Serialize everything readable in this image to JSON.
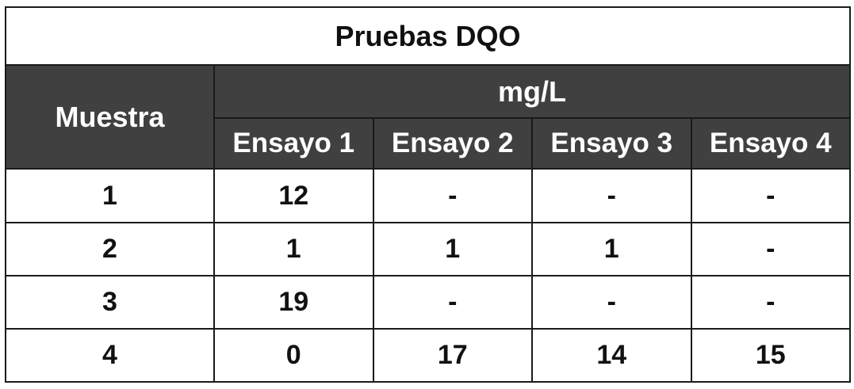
{
  "table": {
    "title": "Pruebas DQO",
    "header": {
      "muestra": "Muestra",
      "units": "mg/L",
      "ensayos": [
        "Ensayo 1",
        "Ensayo 2",
        "Ensayo 3",
        "Ensayo 4"
      ]
    },
    "rows": [
      {
        "muestra": "1",
        "values": [
          "12",
          "-",
          "-",
          "-"
        ]
      },
      {
        "muestra": "2",
        "values": [
          "1",
          "1",
          "1",
          "-"
        ]
      },
      {
        "muestra": "3",
        "values": [
          "19",
          "-",
          "-",
          "-"
        ]
      },
      {
        "muestra": "4",
        "values": [
          "0",
          "17",
          "14",
          "15"
        ]
      }
    ],
    "colors": {
      "header_background": "#404040",
      "header_text": "#ffffff",
      "border": "#1a1a1a",
      "body_background": "#ffffff"
    }
  }
}
